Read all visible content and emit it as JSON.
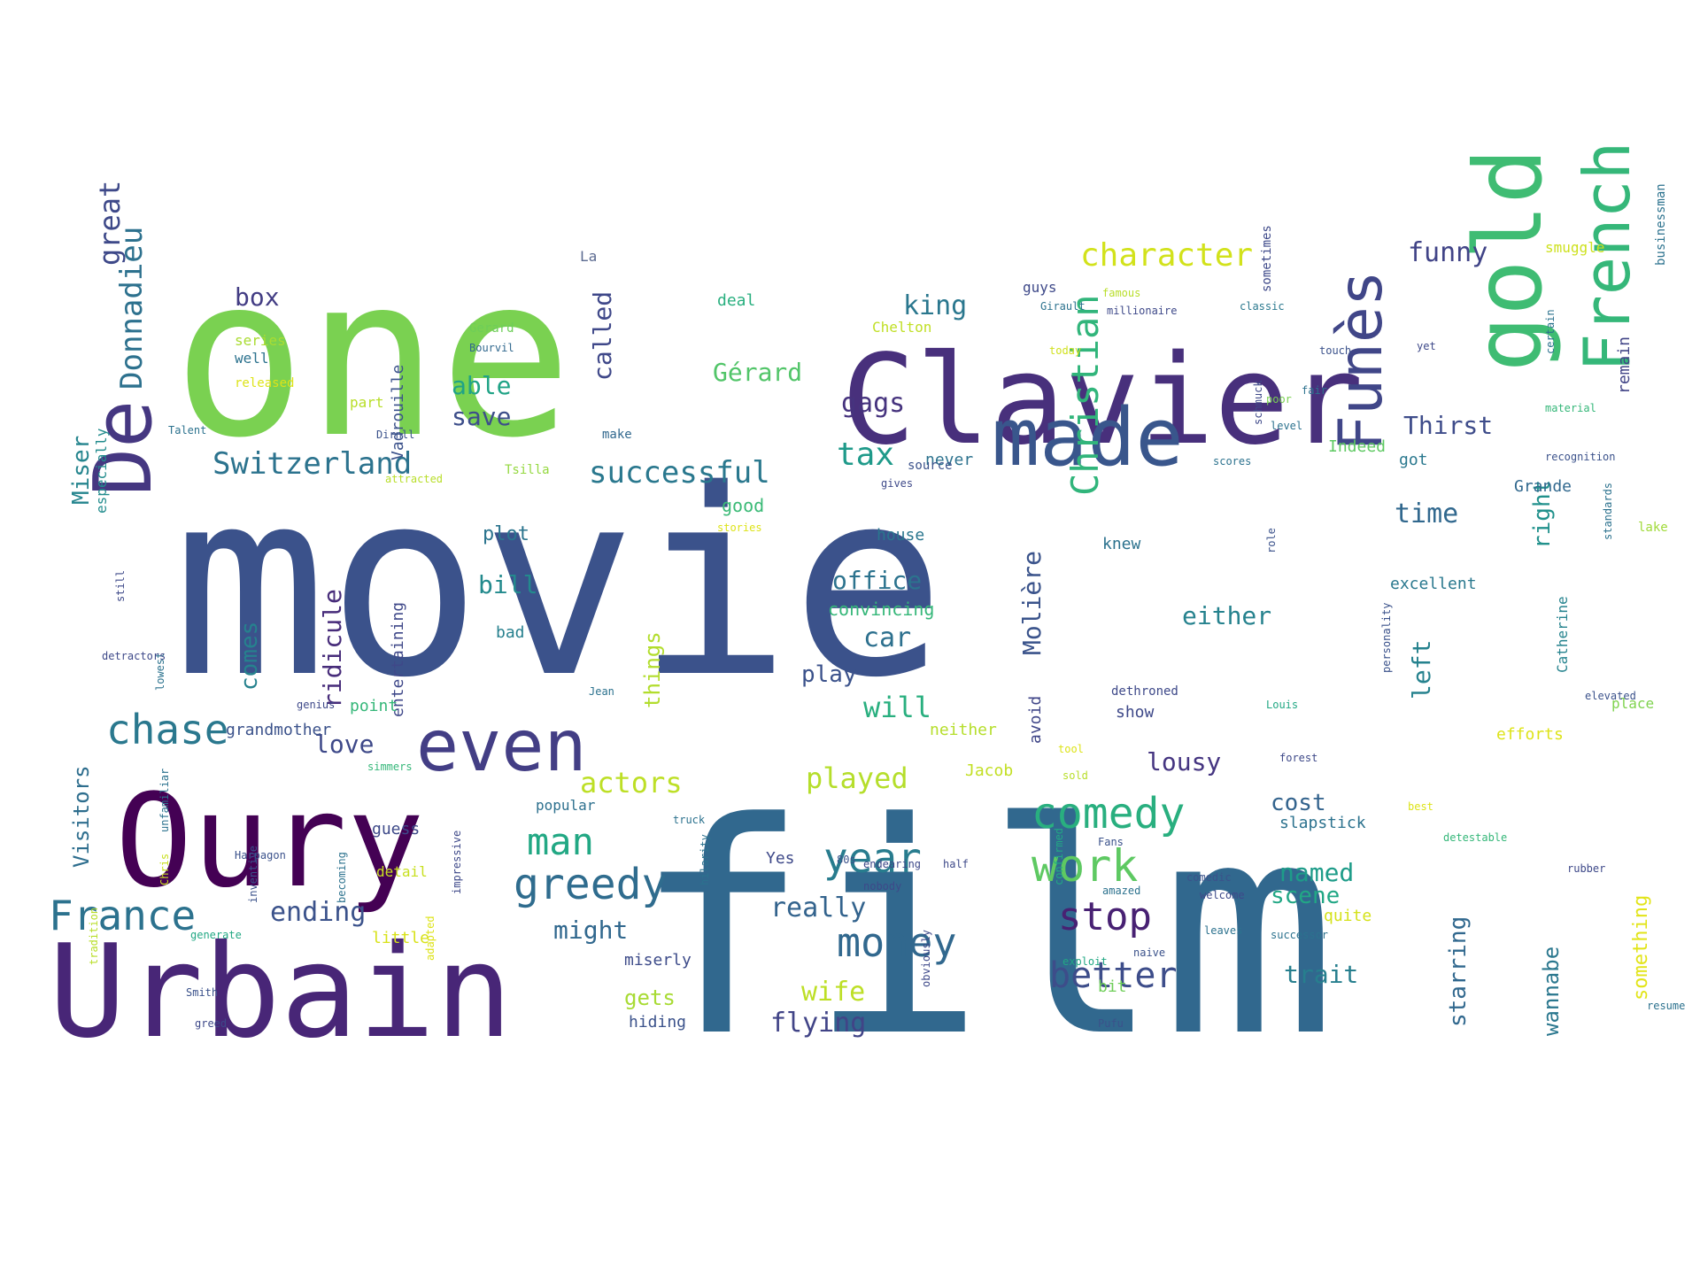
{
  "words": [
    {
      "text": "film",
      "color": "#31688e"
    },
    {
      "text": "movie",
      "color": "#3b528b"
    },
    {
      "text": "one",
      "color": "#7ad151"
    },
    {
      "text": "Clavier",
      "color": "#48307c"
    },
    {
      "text": "Oury",
      "color": "#440154"
    },
    {
      "text": "Urbain",
      "color": "#482677"
    },
    {
      "text": "gold",
      "color": "#3fbc73"
    },
    {
      "text": "De",
      "color": "#453781"
    },
    {
      "text": "made",
      "color": "#39568c"
    },
    {
      "text": "even",
      "color": "#433e85"
    },
    {
      "text": "French",
      "color": "#35b779"
    },
    {
      "text": "Funès",
      "color": "#404688"
    },
    {
      "text": "Donnadieu",
      "color": "#2d718e"
    },
    {
      "text": "great",
      "color": "#3e4989"
    },
    {
      "text": "chase",
      "color": "#2a788e"
    },
    {
      "text": "France",
      "color": "#2c728e"
    },
    {
      "text": "comedy",
      "color": "#29af7f"
    },
    {
      "text": "Christian",
      "color": "#31b57b"
    },
    {
      "text": "money",
      "color": "#31688e"
    },
    {
      "text": "greedy",
      "color": "#2f6c8e"
    },
    {
      "text": "year",
      "color": "#287c8e"
    },
    {
      "text": "work",
      "color": "#5ec962"
    },
    {
      "text": "stop",
      "color": "#482173"
    },
    {
      "text": "man",
      "color": "#22a884"
    },
    {
      "text": "better",
      "color": "#3d4d8a"
    },
    {
      "text": "character",
      "color": "#d2e21b"
    },
    {
      "text": "successful",
      "color": "#2a788e"
    },
    {
      "text": "Switzerland",
      "color": "#2c738e"
    },
    {
      "text": "tax",
      "color": "#1f9a8a"
    },
    {
      "text": "actors",
      "color": "#bddf26"
    },
    {
      "text": "played",
      "color": "#b5de2b"
    },
    {
      "text": "funny",
      "color": "#414487"
    },
    {
      "text": "ending",
      "color": "#3b528b"
    },
    {
      "text": "gags",
      "color": "#46337e"
    },
    {
      "text": "Miser",
      "color": "#25858e"
    },
    {
      "text": "ridicule",
      "color": "#472c7a"
    },
    {
      "text": "really",
      "color": "#33638d"
    },
    {
      "text": "Visitors",
      "color": "#2e6e8e"
    },
    {
      "text": "love",
      "color": "#3e4989"
    },
    {
      "text": "car",
      "color": "#2d708e"
    },
    {
      "text": "Gérard",
      "color": "#52c569"
    },
    {
      "text": "office",
      "color": "#2c738e"
    },
    {
      "text": "time",
      "color": "#31688e"
    },
    {
      "text": "Thirst",
      "color": "#3e4c8a"
    },
    {
      "text": "lousy",
      "color": "#453581"
    },
    {
      "text": "king",
      "color": "#2a778e"
    },
    {
      "text": "called",
      "color": "#3f4889"
    },
    {
      "text": "save",
      "color": "#3d4e8a"
    },
    {
      "text": "bill",
      "color": "#238a8d"
    },
    {
      "text": "box",
      "color": "#433d84"
    },
    {
      "text": "right",
      "color": "#21918c"
    },
    {
      "text": "left",
      "color": "#26828e"
    },
    {
      "text": "either",
      "color": "#26828e"
    },
    {
      "text": "named",
      "color": "#1e9c89"
    },
    {
      "text": "scene",
      "color": "#22a785"
    },
    {
      "text": "cost",
      "color": "#33638d"
    },
    {
      "text": "trait",
      "color": "#277f8e"
    },
    {
      "text": "starring",
      "color": "#31688e"
    },
    {
      "text": "wannabe",
      "color": "#2a778e"
    },
    {
      "text": "flying",
      "color": "#414487"
    },
    {
      "text": "might",
      "color": "#31688e"
    },
    {
      "text": "wife",
      "color": "#bddf26"
    },
    {
      "text": "gets",
      "color": "#a8db34"
    },
    {
      "text": "will",
      "color": "#29af7f"
    },
    {
      "text": "play",
      "color": "#3b528b"
    },
    {
      "text": "Molière",
      "color": "#3a538b"
    },
    {
      "text": "comes",
      "color": "#26828e"
    },
    {
      "text": "things",
      "color": "#b2dd2d"
    },
    {
      "text": "able",
      "color": "#20a386"
    },
    {
      "text": "something",
      "color": "#e2e418"
    },
    {
      "text": "La",
      "color": "#5b6a90"
    },
    {
      "text": "Vadrouille",
      "color": "#3b528b"
    },
    {
      "text": "Tsilla",
      "color": "#95d840"
    },
    {
      "text": "Chelton",
      "color": "#c0df25"
    },
    {
      "text": "Gerard",
      "color": "#6ece58"
    },
    {
      "text": "Bourvil",
      "color": "#31688e"
    },
    {
      "text": "series",
      "color": "#aadc32"
    },
    {
      "text": "well",
      "color": "#2c728e"
    },
    {
      "text": "released",
      "color": "#dde318"
    },
    {
      "text": "part",
      "color": "#b8de29"
    },
    {
      "text": "make",
      "color": "#31688e"
    },
    {
      "text": "especially",
      "color": "#228c8d"
    },
    {
      "text": "entertaining",
      "color": "#3f4889"
    },
    {
      "text": "convincing",
      "color": "#35b779"
    },
    {
      "text": "house",
      "color": "#2a768e"
    },
    {
      "text": "good",
      "color": "#3aba76"
    },
    {
      "text": "plot",
      "color": "#2b748e"
    },
    {
      "text": "bad",
      "color": "#27808e"
    },
    {
      "text": "point",
      "color": "#35b779"
    },
    {
      "text": "grandmother",
      "color": "#3b528b"
    },
    {
      "text": "popular",
      "color": "#2d708e"
    },
    {
      "text": "guess",
      "color": "#3e4a89"
    },
    {
      "text": "detail",
      "color": "#c8e020"
    },
    {
      "text": "little",
      "color": "#d8e219"
    },
    {
      "text": "miserly",
      "color": "#3e4c8a"
    },
    {
      "text": "hiding",
      "color": "#3b528b"
    },
    {
      "text": "Jacob",
      "color": "#c2df23"
    },
    {
      "text": "neither",
      "color": "#b5de2b"
    },
    {
      "text": "avoid",
      "color": "#404688"
    },
    {
      "text": "deal",
      "color": "#29af7f"
    },
    {
      "text": "guys",
      "color": "#3e4989"
    },
    {
      "text": "never",
      "color": "#2c728e"
    },
    {
      "text": "Indeed",
      "color": "#5ec962"
    },
    {
      "text": "got",
      "color": "#2a788e"
    },
    {
      "text": "Grande",
      "color": "#31688e"
    },
    {
      "text": "excellent",
      "color": "#2a788e"
    },
    {
      "text": "Catherine",
      "color": "#25838e"
    },
    {
      "text": "lake",
      "color": "#a0da39"
    },
    {
      "text": "place",
      "color": "#7fd34e"
    },
    {
      "text": "efforts",
      "color": "#dde318"
    },
    {
      "text": "slapstick",
      "color": "#2c728e"
    },
    {
      "text": "remain",
      "color": "#414487"
    },
    {
      "text": "businessman",
      "color": "#2c728e"
    },
    {
      "text": "smuggle",
      "color": "#cde11d"
    },
    {
      "text": "sometimes",
      "color": "#3e4989"
    },
    {
      "text": "knew",
      "color": "#2c728e"
    },
    {
      "text": "show",
      "color": "#3e4989"
    },
    {
      "text": "bit",
      "color": "#6ece58"
    },
    {
      "text": "quite",
      "color": "#d5e21a"
    },
    {
      "text": "Louis",
      "color": "#22a884"
    },
    {
      "text": "Yes",
      "color": "#3e4989"
    },
    {
      "text": "classic",
      "color": "#2a788e"
    },
    {
      "text": "famous",
      "color": "#b8de29"
    },
    {
      "text": "touch",
      "color": "#3b528b"
    },
    {
      "text": "today",
      "color": "#d0e11c"
    },
    {
      "text": "fair",
      "color": "#2c728e"
    },
    {
      "text": "poor",
      "color": "#7ad151"
    },
    {
      "text": "yet",
      "color": "#3e4989"
    },
    {
      "text": "level",
      "color": "#2c728e"
    },
    {
      "text": "source",
      "color": "#3b528b"
    },
    {
      "text": "scores",
      "color": "#2c728e"
    },
    {
      "text": "gives",
      "color": "#3e4989"
    },
    {
      "text": "stories",
      "color": "#dde318"
    },
    {
      "text": "half",
      "color": "#3e4989"
    },
    {
      "text": "Jean",
      "color": "#2c728e"
    },
    {
      "text": "genius",
      "color": "#3e4989"
    },
    {
      "text": "simmers",
      "color": "#35b779"
    },
    {
      "text": "Harpagon",
      "color": "#3b528b"
    },
    {
      "text": "generate",
      "color": "#22a884"
    },
    {
      "text": "impressive",
      "color": "#3e4989"
    },
    {
      "text": "truck",
      "color": "#2c728e"
    },
    {
      "text": "Fans",
      "color": "#3b528b"
    },
    {
      "text": "welcome",
      "color": "#3e4989"
    },
    {
      "text": "successor",
      "color": "#2c728e"
    },
    {
      "text": "Pufu",
      "color": "#3b528b"
    },
    {
      "text": "resume",
      "color": "#2c728e"
    },
    {
      "text": "greed",
      "color": "#3e4989"
    },
    {
      "text": "Smith",
      "color": "#3b528b"
    },
    {
      "text": "Chris",
      "color": "#c8e020"
    },
    {
      "text": "lowest",
      "color": "#2c728e"
    },
    {
      "text": "attracted",
      "color": "#b8de29"
    },
    {
      "text": "elevated",
      "color": "#3b528b"
    },
    {
      "text": "standards",
      "color": "#2c728e"
    },
    {
      "text": "confirmed",
      "color": "#22a884"
    },
    {
      "text": "endearing",
      "color": "#3e4989"
    },
    {
      "text": "comedic",
      "color": "#3b528b"
    },
    {
      "text": "hilarity",
      "color": "#2c728e"
    },
    {
      "text": "detestable",
      "color": "#35b779"
    },
    {
      "text": "dethroned",
      "color": "#3e4989"
    },
    {
      "text": "best",
      "color": "#dde318"
    },
    {
      "text": "personality",
      "color": "#3b528b"
    },
    {
      "text": "Girault",
      "color": "#2c728e"
    },
    {
      "text": "millionaire",
      "color": "#3e4989"
    },
    {
      "text": "recognition",
      "color": "#3b528b"
    },
    {
      "text": "certain",
      "color": "#2c728e"
    },
    {
      "text": "schmuck",
      "color": "#3e4989"
    },
    {
      "text": "material",
      "color": "#35b779"
    },
    {
      "text": "still",
      "color": "#3e4989"
    },
    {
      "text": "unfamiliar",
      "color": "#2c728e"
    },
    {
      "text": "inventive",
      "color": "#3b528b"
    },
    {
      "text": "adapted",
      "color": "#dde318"
    },
    {
      "text": "obviously",
      "color": "#3e4989"
    },
    {
      "text": "becoming",
      "color": "#2c728e"
    },
    {
      "text": "tradition",
      "color": "#b8de29"
    },
    {
      "text": "detractors",
      "color": "#3e4989"
    },
    {
      "text": "Dirnll",
      "color": "#3b528b"
    },
    {
      "text": "Talent",
      "color": "#2c728e"
    },
    {
      "text": "forest",
      "color": "#3e4989"
    },
    {
      "text": "role",
      "color": "#3b528b"
    },
    {
      "text": "leaves",
      "color": "#2c728e"
    },
    {
      "text": "nobody",
      "color": "#3e4989"
    },
    {
      "text": "80s",
      "color": "#3b528b"
    },
    {
      "text": "exploit",
      "color": "#22a884"
    },
    {
      "text": "tool",
      "color": "#dde318"
    },
    {
      "text": "sold",
      "color": "#b8de29"
    },
    {
      "text": "amazed",
      "color": "#2c728e"
    },
    {
      "text": "rubber",
      "color": "#3e4989"
    },
    {
      "text": "naive",
      "color": "#3b528b"
    },
    {
      "text": "fine",
      "color": "#35b779"
    }
  ]
}
